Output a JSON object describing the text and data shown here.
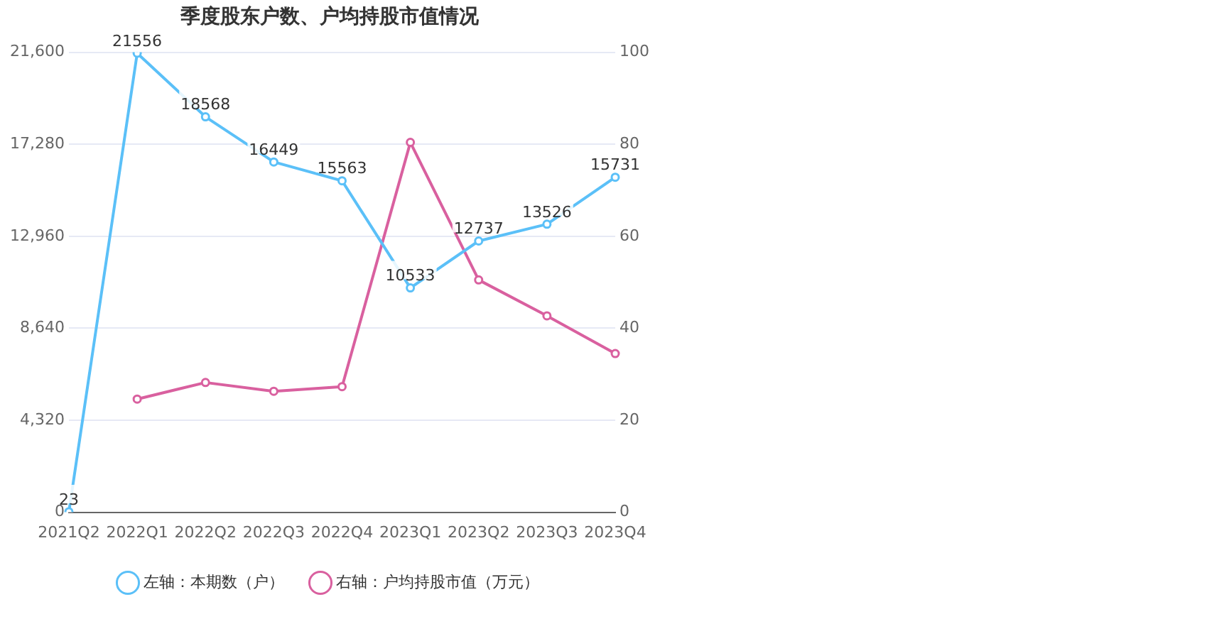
{
  "chart_data": {
    "type": "line",
    "title": "季度股东户数、户均持股市值情况",
    "categories": [
      "2021Q2",
      "2022Q1",
      "2022Q2",
      "2022Q3",
      "2022Q4",
      "2023Q1",
      "2023Q2",
      "2023Q3",
      "2023Q4"
    ],
    "series": [
      {
        "name": "左轴：本期数（户）",
        "color": "#5bc0f8",
        "values": [
          23,
          21556,
          18568,
          16449,
          15563,
          10533,
          12737,
          13526,
          15731
        ],
        "value_labels": [
          "23",
          "21556",
          "18568",
          "16449",
          "15563",
          "10533",
          "12737",
          "13526",
          "15731"
        ]
      },
      {
        "name": "右轴：户均持股市值（万元）",
        "color": "#d9609f",
        "axis": "y2",
        "values": [
          null,
          24.6,
          28.2,
          26.3,
          27.3,
          80.4,
          50.5,
          42.7,
          34.5
        ]
      }
    ],
    "ylim": [
      0,
      21600
    ],
    "yticks": [
      0,
      {
        "value": 4320,
        "label": "4,320"
      },
      {
        "value": 8640,
        "label": "8,640"
      },
      {
        "value": 12960,
        "label": "12,960"
      },
      {
        "value": 17280,
        "label": "17,280"
      },
      {
        "value": 21600,
        "label": "21,600"
      }
    ],
    "y2lim": [
      0,
      100
    ],
    "y2ticks": [
      0,
      20,
      40,
      60,
      80,
      100
    ],
    "grid": "y",
    "legend": "bottom",
    "marker": "circle",
    "line_style": "solid"
  }
}
